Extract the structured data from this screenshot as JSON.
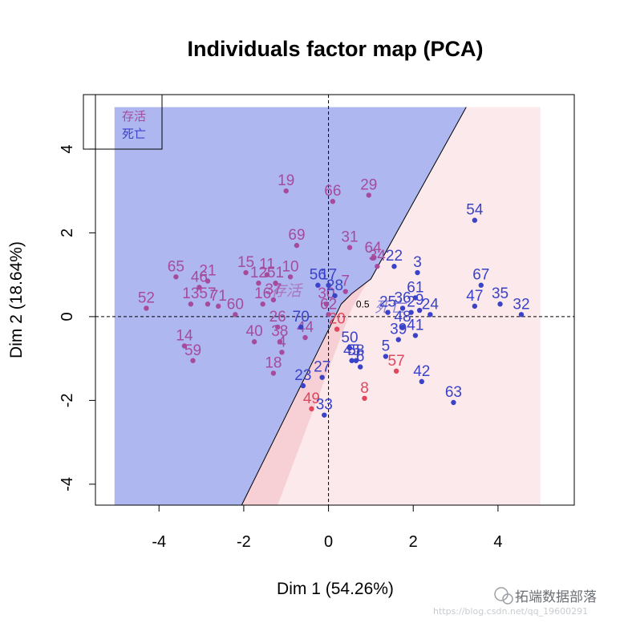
{
  "colors": {
    "alive": "#a64b9c",
    "dead": "#3a43c8",
    "alive_red": "#e0475c",
    "region_alive": "#aeb7f0",
    "region_dead": "#fbe9ec",
    "region_band": "#f5c7cf",
    "axis": "#000000"
  },
  "chart_data": {
    "type": "scatter",
    "title": "Individuals factor map (PCA)",
    "xlabel": "Dim 1 (54.26%)",
    "ylabel": "Dim 2 (18.64%)",
    "xlim": [
      -5.5,
      5.8
    ],
    "ylim": [
      -4.5,
      5.3
    ],
    "xticks": [
      -4,
      -2,
      0,
      2,
      4
    ],
    "yticks": [
      -4,
      -2,
      0,
      2,
      4
    ],
    "legend": {
      "position": "top-left",
      "entries": [
        "存活",
        "死亡"
      ]
    },
    "contour_label": "0.5",
    "centroid_labels": [
      {
        "text": "存活",
        "x": -1.0,
        "y": 0.5,
        "group": "alive"
      },
      {
        "text": "死亡",
        "x": 1.45,
        "y": 0.1,
        "group": "dead"
      }
    ],
    "points": [
      {
        "label": "19",
        "x": -1.0,
        "y": 3.0,
        "group": "alive"
      },
      {
        "label": "66",
        "x": 0.1,
        "y": 2.75,
        "group": "alive"
      },
      {
        "label": "29",
        "x": 0.95,
        "y": 2.9,
        "group": "alive"
      },
      {
        "label": "69",
        "x": -0.75,
        "y": 1.7,
        "group": "alive"
      },
      {
        "label": "31",
        "x": 0.5,
        "y": 1.65,
        "group": "alive"
      },
      {
        "label": "64",
        "x": 1.05,
        "y": 1.4,
        "group": "alive"
      },
      {
        "label": "34",
        "x": 1.15,
        "y": 1.2,
        "group": "alive"
      },
      {
        "label": "65",
        "x": -3.6,
        "y": 0.95,
        "group": "alive"
      },
      {
        "label": "21",
        "x": -2.85,
        "y": 0.85,
        "group": "alive"
      },
      {
        "label": "46",
        "x": -3.05,
        "y": 0.7,
        "group": "alive"
      },
      {
        "label": "15",
        "x": -1.95,
        "y": 1.05,
        "group": "alive"
      },
      {
        "label": "11",
        "x": -1.45,
        "y": 1.0,
        "group": "alive"
      },
      {
        "label": "10",
        "x": -0.9,
        "y": 0.95,
        "group": "alive"
      },
      {
        "label": "12",
        "x": -1.65,
        "y": 0.8,
        "group": "alive"
      },
      {
        "label": "51",
        "x": -1.25,
        "y": 0.8,
        "group": "alive"
      },
      {
        "label": "52",
        "x": -4.3,
        "y": 0.2,
        "group": "alive"
      },
      {
        "label": "13",
        "x": -3.25,
        "y": 0.3,
        "group": "alive"
      },
      {
        "label": "57",
        "x": -2.85,
        "y": 0.3,
        "group": "alive"
      },
      {
        "label": "71",
        "x": -2.6,
        "y": 0.25,
        "group": "alive"
      },
      {
        "label": "60",
        "x": -2.2,
        "y": 0.05,
        "group": "alive"
      },
      {
        "label": "16",
        "x": -1.55,
        "y": 0.3,
        "group": "alive"
      },
      {
        "label": "37",
        "x": -1.3,
        "y": 0.4,
        "group": "alive"
      },
      {
        "label": "7",
        "x": 0.4,
        "y": 0.6,
        "group": "alive"
      },
      {
        "label": "14",
        "x": -3.4,
        "y": -0.7,
        "group": "alive"
      },
      {
        "label": "59",
        "x": -3.2,
        "y": -1.05,
        "group": "alive"
      },
      {
        "label": "40",
        "x": -1.75,
        "y": -0.6,
        "group": "alive"
      },
      {
        "label": "26",
        "x": -1.2,
        "y": -0.25,
        "group": "alive"
      },
      {
        "label": "38",
        "x": -1.15,
        "y": -0.6,
        "group": "alive"
      },
      {
        "label": "44",
        "x": -0.55,
        "y": -0.5,
        "group": "alive"
      },
      {
        "label": "4",
        "x": -1.1,
        "y": -0.85,
        "group": "alive"
      },
      {
        "label": "18",
        "x": -1.3,
        "y": -1.35,
        "group": "alive"
      },
      {
        "label": "30",
        "x": -0.05,
        "y": 0.3,
        "group": "alive"
      },
      {
        "label": "62",
        "x": 0.0,
        "y": 0.05,
        "group": "alive"
      },
      {
        "label": "49",
        "x": -0.4,
        "y": -2.2,
        "group": "alive_red"
      },
      {
        "label": "20",
        "x": 0.2,
        "y": -0.3,
        "group": "alive_red"
      },
      {
        "label": "57",
        "x": 1.6,
        "y": -1.3,
        "group": "alive_red"
      },
      {
        "label": "8",
        "x": 0.85,
        "y": -1.95,
        "group": "alive_red"
      },
      {
        "label": "56",
        "x": -0.25,
        "y": 0.75,
        "group": "dead"
      },
      {
        "label": "17",
        "x": 0.0,
        "y": 0.75,
        "group": "dead"
      },
      {
        "label": "28",
        "x": 0.15,
        "y": 0.5,
        "group": "dead"
      },
      {
        "label": "70",
        "x": -0.65,
        "y": -0.25,
        "group": "dead"
      },
      {
        "label": "22",
        "x": 1.55,
        "y": 1.2,
        "group": "dead"
      },
      {
        "label": "3",
        "x": 2.1,
        "y": 1.05,
        "group": "dead"
      },
      {
        "label": "54",
        "x": 3.45,
        "y": 2.3,
        "group": "dead"
      },
      {
        "label": "67",
        "x": 3.6,
        "y": 0.75,
        "group": "dead"
      },
      {
        "label": "47",
        "x": 3.45,
        "y": 0.25,
        "group": "dead"
      },
      {
        "label": "35",
        "x": 4.05,
        "y": 0.3,
        "group": "dead"
      },
      {
        "label": "32",
        "x": 4.55,
        "y": 0.05,
        "group": "dead"
      },
      {
        "label": "61",
        "x": 2.05,
        "y": 0.45,
        "group": "dead"
      },
      {
        "label": "24",
        "x": 2.4,
        "y": 0.05,
        "group": "dead"
      },
      {
        "label": "25",
        "x": 1.4,
        "y": 0.1,
        "group": "dead"
      },
      {
        "label": "36",
        "x": 1.75,
        "y": 0.2,
        "group": "dead"
      },
      {
        "label": "9",
        "x": 2.15,
        "y": 0.15,
        "group": "dead"
      },
      {
        "label": "2",
        "x": 1.95,
        "y": 0.1,
        "group": "dead"
      },
      {
        "label": "48",
        "x": 1.75,
        "y": -0.25,
        "group": "dead"
      },
      {
        "label": "41",
        "x": 2.05,
        "y": -0.45,
        "group": "dead"
      },
      {
        "label": "39",
        "x": 1.65,
        "y": -0.55,
        "group": "dead"
      },
      {
        "label": "5",
        "x": 1.35,
        "y": -0.95,
        "group": "dead"
      },
      {
        "label": "50",
        "x": 0.5,
        "y": -0.75,
        "group": "dead"
      },
      {
        "label": "45",
        "x": 0.55,
        "y": -1.05,
        "group": "dead"
      },
      {
        "label": "58",
        "x": 0.65,
        "y": -1.05,
        "group": "dead"
      },
      {
        "label": "6",
        "x": 0.75,
        "y": -1.2,
        "group": "dead"
      },
      {
        "label": "27",
        "x": -0.15,
        "y": -1.45,
        "group": "dead"
      },
      {
        "label": "23",
        "x": -0.6,
        "y": -1.65,
        "group": "dead"
      },
      {
        "label": "33",
        "x": -0.1,
        "y": -2.35,
        "group": "dead"
      },
      {
        "label": "42",
        "x": 2.2,
        "y": -1.55,
        "group": "dead"
      },
      {
        "label": "63",
        "x": 2.95,
        "y": -2.05,
        "group": "dead"
      }
    ]
  },
  "watermark": {
    "brand": "拓端数据部落",
    "url": "https://blog.csdn.net/qq_19600291"
  }
}
